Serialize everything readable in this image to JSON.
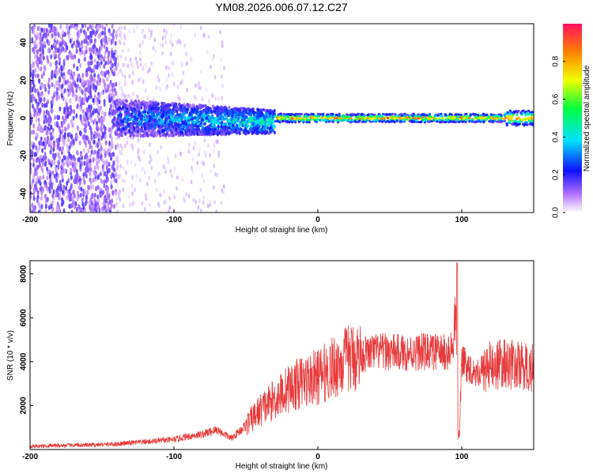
{
  "title": "YM08.2026.006.07.12.C27",
  "chart_data": [
    {
      "type": "heatmap",
      "name": "spectrogram",
      "xlabel": "Height of straight line (km)",
      "ylabel": "Frequency (Hz)",
      "xlim": [
        -200,
        150
      ],
      "ylim": [
        -50,
        50
      ],
      "x_ticks": [
        -200,
        -100,
        0,
        100
      ],
      "x_tick_labels": [
        "-200",
        "-100",
        "0",
        "100"
      ],
      "y_ticks": [
        -40,
        -20,
        0,
        20,
        40
      ],
      "y_tick_labels": [
        "-40",
        "-20",
        "0",
        "20",
        "40"
      ],
      "colorbar": {
        "label": "Normalized spectral amplitude",
        "range": [
          0,
          1
        ],
        "ticks": [
          0.0,
          0.2,
          0.4,
          0.6,
          0.8
        ],
        "tick_labels": [
          "0.0",
          "0.2",
          "0.4",
          "0.6",
          "0.8"
        ]
      },
      "regions": [
        {
          "x_range": [
            -200,
            -140
          ],
          "description": "dense broadband noise",
          "freq_range": [
            -50,
            50
          ],
          "amplitude": 0.12
        },
        {
          "x_range": [
            -140,
            -65
          ],
          "description": "sparse scattered noise",
          "freq_range": [
            -50,
            50
          ],
          "amplitude": 0.04
        },
        {
          "x_range": [
            -140,
            -30
          ],
          "description": "broad signal band",
          "freq_range": [
            -10,
            10
          ],
          "amplitude": 0.3
        },
        {
          "x_range": [
            -30,
            150
          ],
          "description": "narrow signal line at 0 Hz",
          "freq_range": [
            -2,
            2
          ],
          "amplitude": 0.9
        }
      ]
    },
    {
      "type": "line",
      "name": "snr",
      "xlabel": "Height of straight line (km)",
      "ylabel": "SNR (10 * v/v)",
      "xlim": [
        -200,
        150
      ],
      "ylim": [
        0,
        8600
      ],
      "x_ticks": [
        -200,
        -100,
        0,
        100
      ],
      "x_tick_labels": [
        "-200",
        "-100",
        "0",
        "100"
      ],
      "y_ticks": [
        2000,
        4000,
        6000,
        8000
      ],
      "y_tick_labels": [
        "2000",
        "4000",
        "6000",
        "8000"
      ],
      "series": [
        {
          "name": "SNR",
          "color": "#e83a3a",
          "x": [
            -200,
            -180,
            -160,
            -140,
            -120,
            -100,
            -90,
            -80,
            -70,
            -60,
            -50,
            -40,
            -30,
            -20,
            -10,
            0,
            10,
            20,
            30,
            40,
            50,
            60,
            70,
            80,
            90,
            96,
            98,
            100,
            110,
            120,
            130,
            140,
            150
          ],
          "y": [
            150,
            180,
            200,
            250,
            350,
            450,
            600,
            700,
            900,
            500,
            1100,
            1800,
            2300,
            2800,
            3100,
            3300,
            3700,
            4100,
            4300,
            4450,
            4450,
            4400,
            4450,
            4450,
            4400,
            4600,
            300,
            4000,
            3500,
            3800,
            3900,
            3800,
            3700
          ]
        }
      ]
    }
  ]
}
